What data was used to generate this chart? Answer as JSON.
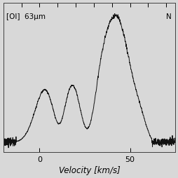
{
  "title_left": "[OI]  63μm",
  "title_right": "N",
  "xlabel": "Velocity [km/s]",
  "xlim": [
    -20,
    75
  ],
  "ylim": [
    -0.08,
    1.1
  ],
  "xticks": [
    0,
    50
  ],
  "top_ticks": [
    -20,
    -10,
    0,
    10,
    20,
    30,
    40,
    50,
    60,
    70
  ],
  "background_color": "#d8d8d8",
  "line_color": "#111111",
  "line_width": 0.7,
  "figsize": [
    2.55,
    2.55
  ],
  "dpi": 100,
  "noise_seed": 7,
  "noise_amplitude": 0.012
}
